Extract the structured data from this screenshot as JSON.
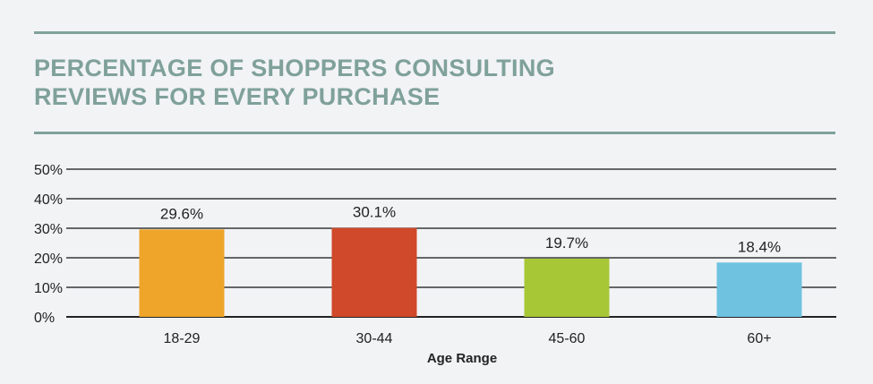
{
  "title_lines": [
    "PERCENTAGE OF SHOPPERS CONSULTING",
    "REVIEWS FOR EVERY PURCHASE"
  ],
  "colors": {
    "accent": "#7fa19a",
    "bars": [
      "#eea52a",
      "#d0492a",
      "#a8c737",
      "#6fc3e0"
    ]
  },
  "chart_data": {
    "type": "bar",
    "title": "PERCENTAGE OF SHOPPERS CONSULTING REVIEWS FOR EVERY PURCHASE",
    "categories": [
      "18-29",
      "30-44",
      "45-60",
      "60+"
    ],
    "values": [
      29.6,
      30.1,
      19.7,
      18.4
    ],
    "data_labels": [
      "29.6%",
      "30.1%",
      "19.7%",
      "18.4%"
    ],
    "xlabel": "Age Range",
    "ylabel": "",
    "ylim": [
      0,
      50
    ],
    "yticks": [
      "0%",
      "10%",
      "20%",
      "30%",
      "40%",
      "50%"
    ],
    "grid": true,
    "legend": "none"
  }
}
